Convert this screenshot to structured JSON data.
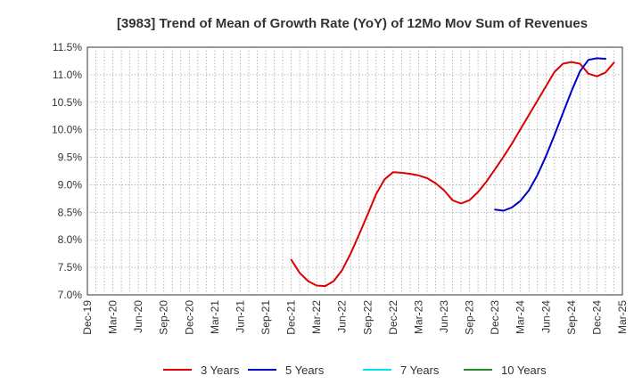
{
  "chart_data": {
    "type": "line",
    "title": "[3983]  Trend of Mean of Growth Rate (YoY) of 12Mo Mov Sum of Revenues",
    "xlabel": "",
    "ylabel": "",
    "ylim": [
      7.0,
      11.5
    ],
    "y_ticks": [
      "7.0%",
      "7.5%",
      "8.0%",
      "8.5%",
      "9.0%",
      "9.5%",
      "10.0%",
      "10.5%",
      "11.0%",
      "11.5%"
    ],
    "x_tick_labels": [
      "Dec-19",
      "Mar-20",
      "Jun-20",
      "Sep-20",
      "Dec-20",
      "Mar-21",
      "Jun-21",
      "Sep-21",
      "Dec-21",
      "Mar-22",
      "Jun-22",
      "Sep-22",
      "Dec-22",
      "Mar-23",
      "Jun-23",
      "Sep-23",
      "Dec-23",
      "Mar-24",
      "Jun-24",
      "Sep-24",
      "Dec-24",
      "Mar-25"
    ],
    "grid": true,
    "legend_position": "bottom",
    "series": [
      {
        "name": "3 Years",
        "color": "#dd0000",
        "start_index": 24,
        "values": [
          7.64,
          7.4,
          7.25,
          7.17,
          7.16,
          7.25,
          7.45,
          7.75,
          8.1,
          8.46,
          8.83,
          9.1,
          9.23,
          9.22,
          9.2,
          9.17,
          9.12,
          9.03,
          8.9,
          8.72,
          8.66,
          8.72,
          8.87,
          9.06,
          9.28,
          9.51,
          9.75,
          10.01,
          10.27,
          10.53,
          10.79,
          11.05,
          11.2,
          11.23,
          11.2,
          11.02,
          10.97,
          11.04,
          11.22
        ]
      },
      {
        "name": "5 Years",
        "color": "#0000cc",
        "start_index": 48,
        "values": [
          8.55,
          8.53,
          8.59,
          8.71,
          8.9,
          9.18,
          9.52,
          9.9,
          10.3,
          10.7,
          11.06,
          11.27,
          11.3,
          11.29
        ]
      },
      {
        "name": "7 Years",
        "color": "#00e5ee",
        "start_index": null,
        "values": []
      },
      {
        "name": "10 Years",
        "color": "#228b22",
        "start_index": null,
        "values": []
      }
    ]
  }
}
